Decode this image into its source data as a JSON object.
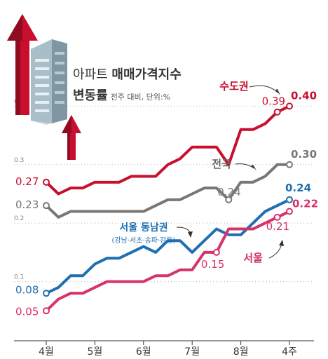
{
  "title": {
    "line1_prefix": "아파트",
    "line1_bold": "매매가격지수",
    "line2": "변동률",
    "subtitle": "전주 대비, 단위:%"
  },
  "colors": {
    "metro": "#c8102e",
    "national": "#777777",
    "southeast": "#1f6fb2",
    "seoul": "#d6336c",
    "grid": "#bbbbbb",
    "building": "#9ab3bf",
    "arrow": "#c8102e"
  },
  "chart_data": {
    "type": "line",
    "x_ticks": [
      "4월",
      "5월",
      "6월",
      "7월",
      "8월",
      "4주"
    ],
    "y_ticks": [
      "0.1",
      "0.2",
      "0.3",
      "0.4"
    ],
    "ylim": [
      0,
      0.43
    ],
    "n_points": 21,
    "series": [
      {
        "name": "수도권",
        "key": "metro",
        "values": [
          0.27,
          0.25,
          0.26,
          0.26,
          0.27,
          0.27,
          0.27,
          0.28,
          0.28,
          0.28,
          0.3,
          0.31,
          0.33,
          0.33,
          0.33,
          0.3,
          0.36,
          0.36,
          0.37,
          0.39,
          0.4
        ],
        "labels": [
          {
            "i": 0,
            "text": "0.27"
          },
          {
            "i": 19,
            "text": "0.39"
          },
          {
            "i": 20,
            "text": "0.40"
          }
        ]
      },
      {
        "name": "전국",
        "key": "national",
        "values": [
          0.23,
          0.21,
          0.22,
          0.22,
          0.22,
          0.22,
          0.22,
          0.22,
          0.22,
          0.23,
          0.24,
          0.24,
          0.25,
          0.26,
          0.26,
          0.24,
          0.27,
          0.27,
          0.28,
          0.3,
          0.3
        ],
        "labels": [
          {
            "i": 0,
            "text": "0.23"
          },
          {
            "i": 15,
            "text": "0.24"
          },
          {
            "i": 20,
            "text": "0.30"
          }
        ]
      },
      {
        "name": "서울 동남권",
        "note": "(강남·서초·송파·강동)",
        "key": "southeast",
        "values": [
          0.08,
          0.09,
          0.11,
          0.11,
          0.13,
          0.14,
          0.14,
          0.15,
          0.16,
          0.15,
          0.17,
          0.17,
          0.15,
          0.17,
          0.19,
          0.18,
          0.18,
          0.2,
          0.22,
          0.23,
          0.24
        ],
        "labels": [
          {
            "i": 0,
            "text": "0.08"
          },
          {
            "i": 20,
            "text": "0.24"
          }
        ]
      },
      {
        "name": "서울",
        "key": "seoul",
        "values": [
          0.05,
          0.07,
          0.08,
          0.08,
          0.09,
          0.1,
          0.1,
          0.1,
          0.1,
          0.11,
          0.11,
          0.12,
          0.12,
          0.15,
          0.15,
          0.19,
          0.19,
          0.19,
          0.2,
          0.21,
          0.22
        ],
        "labels": [
          {
            "i": 0,
            "text": "0.05"
          },
          {
            "i": 14,
            "text": "0.15"
          },
          {
            "i": 19,
            "text": "0.21"
          },
          {
            "i": 20,
            "text": "0.22"
          }
        ]
      }
    ]
  }
}
